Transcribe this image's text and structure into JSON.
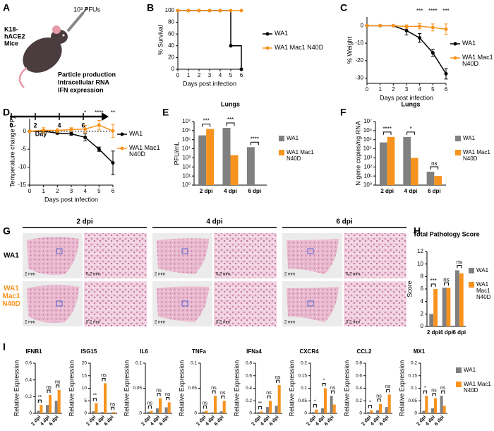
{
  "schematic": {
    "panel": "A",
    "mouse_label": [
      "K18-",
      "hACE2",
      "Mice"
    ],
    "inoculum": "10³ PFUs",
    "readouts": [
      "Particle production",
      "Intracellular RNA",
      "IFN expression"
    ],
    "days": [
      0,
      2,
      4,
      6
    ],
    "day_label": "Day"
  },
  "histology": {
    "panel": "G",
    "columns": [
      "2 dpi",
      "4 dpi",
      "6 dpi"
    ],
    "rows": [
      {
        "label": "WA1",
        "color": "#000000"
      },
      {
        "label": "WA1 Mac1 N40D",
        "color": "#f7931e"
      }
    ],
    "scale_bars": [
      "2 mm",
      "0.2 mm"
    ]
  },
  "chart_data": [
    {
      "panel": "B",
      "type": "line",
      "step": true,
      "x_label": "Days post infection",
      "y_label": "% Survival",
      "x": [
        0,
        1,
        2,
        3,
        4,
        5,
        6
      ],
      "xlim": [
        0,
        6
      ],
      "xticks": [
        0,
        1,
        2,
        3,
        4,
        5,
        6
      ],
      "ylim": [
        0,
        100
      ],
      "yticks": [
        0,
        20,
        40,
        60,
        80,
        100
      ],
      "legend": "right",
      "series": [
        {
          "name": "WA1",
          "color": "#000000",
          "values": [
            100,
            100,
            100,
            100,
            100,
            40,
            0
          ]
        },
        {
          "name": "WA1 Mac1 N40D",
          "color": "#f7931e",
          "values": [
            100,
            100,
            100,
            100,
            100,
            100,
            100
          ]
        }
      ]
    },
    {
      "panel": "C",
      "type": "line",
      "x_label": "Days post infection",
      "y_label": "% Weight",
      "x": [
        0,
        1,
        2,
        3,
        4,
        5,
        6
      ],
      "xlim": [
        0,
        6
      ],
      "xticks": [
        0,
        1,
        2,
        3,
        4,
        5,
        6
      ],
      "ylim": [
        -33,
        5
      ],
      "yticks": [
        -30,
        -20,
        -10,
        0
      ],
      "legend": "right",
      "annotations": [
        {
          "x": 4,
          "text": "***"
        },
        {
          "x": 5,
          "text": "****"
        },
        {
          "x": 6,
          "text": "***"
        }
      ],
      "series": [
        {
          "name": "WA1",
          "color": "#000000",
          "values": [
            0,
            0,
            0,
            -2.8,
            -7,
            -15.5,
            -27.5
          ],
          "errors": [
            0,
            0,
            0,
            2.5,
            2.5,
            2,
            3
          ]
        },
        {
          "name": "WA1 Mac1 N40D",
          "color": "#f7931e",
          "values": [
            0,
            0,
            0,
            -0.5,
            -0.3,
            -1,
            -2
          ],
          "errors": [
            0,
            0,
            0,
            1,
            1.5,
            2,
            3
          ]
        }
      ]
    },
    {
      "panel": "D",
      "type": "line",
      "x_label": "Days post infection",
      "y_label": "Temperature change (ºF)",
      "x": [
        0,
        1,
        2,
        3,
        4,
        5,
        6
      ],
      "xlim": [
        0,
        6
      ],
      "xticks": [
        0,
        1,
        2,
        3,
        4,
        5,
        6
      ],
      "ylim": [
        -15,
        3.5
      ],
      "yticks": [
        -15,
        -10,
        -5,
        0
      ],
      "hline": 0,
      "legend": "right",
      "annotations": [
        {
          "x": 4,
          "text": "*"
        },
        {
          "x": 5,
          "text": "****"
        },
        {
          "x": 6,
          "text": "**"
        }
      ],
      "series": [
        {
          "name": "WA1",
          "color": "#000000",
          "values": [
            0,
            0,
            -0.5,
            -0.7,
            -1.7,
            -5,
            -8.8
          ],
          "errors": [
            0,
            0,
            0.3,
            0.4,
            1,
            0.6,
            3.3
          ]
        },
        {
          "name": "WA1 Mac1 N40D",
          "color": "#f7931e",
          "values": [
            0,
            0.3,
            0.2,
            0.5,
            0.6,
            1.7,
            0.1
          ],
          "errors": [
            0,
            0.7,
            0.5,
            0.5,
            1,
            1.3,
            1.8
          ]
        }
      ]
    },
    {
      "panel": "E",
      "type": "bar",
      "title": "Lungs",
      "y_label": "PFU/mL",
      "log_scale": true,
      "legend": "right",
      "categories": [
        "2 dpi",
        "4 dpi",
        "6 dpi"
      ],
      "ylim": [
        1,
        10000000
      ],
      "yticks": [
        {
          "value": 1,
          "label": "10⁰"
        },
        {
          "value": 10,
          "label": "10¹"
        },
        {
          "value": 100,
          "label": "10²"
        },
        {
          "value": 1000,
          "label": "10³"
        },
        {
          "value": 10000,
          "label": "10⁴"
        },
        {
          "value": 100000,
          "label": "10⁵"
        },
        {
          "value": 1000000,
          "label": "10⁶"
        },
        {
          "value": 10000000,
          "label": "10⁷"
        }
      ],
      "significance": [
        "***",
        "***",
        "****"
      ],
      "series": [
        {
          "name": "WA1",
          "color": "#808080",
          "values": [
            300000,
            2000000,
            15000
          ]
        },
        {
          "name": "WA1 Mac1 N40D",
          "color": "#f7931e",
          "values": [
            1500000,
            2000,
            null
          ]
        }
      ]
    },
    {
      "panel": "F",
      "type": "bar",
      "title": "Lungs",
      "y_label": "N gene copies/ng RNA",
      "log_scale": true,
      "legend": "right",
      "categories": [
        "2 dpi",
        "4 dpi",
        "6 dpi"
      ],
      "ylim": [
        1,
        10000000
      ],
      "yticks": [
        {
          "value": 1,
          "label": "10⁰"
        },
        {
          "value": 10,
          "label": "10¹"
        },
        {
          "value": 100,
          "label": "10²"
        },
        {
          "value": 1000,
          "label": "10³"
        },
        {
          "value": 10000,
          "label": "10⁴"
        },
        {
          "value": 100000,
          "label": "10⁵"
        },
        {
          "value": 1000000,
          "label": "10⁶"
        },
        {
          "value": 10000000,
          "label": "10⁷"
        }
      ],
      "significance": [
        "****",
        "*",
        "ns"
      ],
      "series": [
        {
          "name": "WA1",
          "color": "#808080",
          "values": [
            50000,
            200000,
            30
          ]
        },
        {
          "name": "WA1 Mac1 N40D",
          "color": "#f7931e",
          "values": [
            200000,
            1000,
            10
          ]
        }
      ]
    },
    {
      "panel": "H",
      "type": "bar",
      "title": "Total Pathology Score",
      "y_label": "Score",
      "legend": "right",
      "categories": [
        "2 dpi",
        "4 dpi",
        "6 dpi"
      ],
      "ylim": [
        0,
        12
      ],
      "yticks": [
        0,
        2,
        4,
        6,
        8,
        10,
        12
      ],
      "significance": [
        "***",
        "ns",
        "ns"
      ],
      "series": [
        {
          "name": "WA1",
          "color": "#808080",
          "values": [
            2,
            6.2,
            9
          ]
        },
        {
          "name": "WA1 Mac1 N40D",
          "color": "#f7931e",
          "values": [
            6,
            6.2,
            8.5
          ]
        }
      ]
    },
    {
      "panel": "I",
      "type": "bar",
      "y_label": "Relative Expression",
      "legend": "right",
      "categories": [
        "2 dpi",
        "4 dpi",
        "6 dpi"
      ],
      "series": [
        {
          "name": "WA1",
          "color": "#808080"
        },
        {
          "name": "WA1 Mac1 N40D",
          "color": "#f7931e"
        }
      ],
      "subplots": [
        {
          "title": "IFNB1",
          "ylim": [
            0,
            0.6
          ],
          "yticks": [
            0,
            0.2,
            0.4,
            0.6
          ],
          "values": [
            [
              0.03,
              0.1,
              0.15
            ],
            [
              0.1,
              0.22,
              0.28
            ]
          ],
          "significance": [
            "**",
            "ns",
            "ns"
          ]
        },
        {
          "title": "ISG15",
          "ylim": [
            0,
            20
          ],
          "yticks": [
            0,
            5,
            10,
            15,
            20
          ],
          "values": [
            [
              0.8,
              0.5,
              0.3
            ],
            [
              4,
              12,
              0.5
            ]
          ],
          "significance": [
            "**",
            "ns",
            "ns"
          ]
        },
        {
          "title": "IL6",
          "ylim": [
            0,
            0.1
          ],
          "yticks": [
            0,
            0.05,
            0.1
          ],
          "values": [
            [
              0.003,
              0.01,
              0.012
            ],
            [
              0.005,
              0.03,
              0.022
            ]
          ],
          "significance": [
            "ns",
            "ns",
            "ns"
          ]
        },
        {
          "title": "TNFa",
          "ylim": [
            0,
            0.1
          ],
          "yticks": [
            0,
            0.05,
            0.1
          ],
          "values": [
            [
              0.003,
              0.002,
              0.004
            ],
            [
              0.005,
              0.035,
              0.025
            ]
          ],
          "significance": [
            "ns",
            "ns",
            "ns"
          ]
        },
        {
          "title": "IFNa4",
          "ylim": [
            0,
            0.8
          ],
          "yticks": [
            0,
            0.2,
            0.4,
            0.6,
            0.8
          ],
          "values": [
            [
              0.02,
              0.1,
              0.12
            ],
            [
              0.03,
              0.2,
              0.45
            ]
          ],
          "significance": [
            "**",
            "ns",
            "ns"
          ]
        },
        {
          "title": "CXCR4",
          "ylim": [
            0,
            0.2
          ],
          "yticks": [
            0,
            0.05,
            0.1,
            0.15,
            0.2
          ],
          "values": [
            [
              0.005,
              0.02,
              0.07
            ],
            [
              0.015,
              0.1,
              0.035
            ]
          ],
          "significance": [
            "*",
            "*",
            "ns"
          ]
        },
        {
          "title": "CCL2",
          "ylim": [
            0,
            0.8
          ],
          "yticks": [
            0,
            0.2,
            0.4,
            0.6,
            0.8
          ],
          "values": [
            [
              0.02,
              0.05,
              0.1
            ],
            [
              0.05,
              0.15,
              0.3
            ]
          ],
          "significance": [
            "*",
            "ns",
            "ns"
          ]
        },
        {
          "title": "MX1",
          "ylim": [
            0,
            0.2
          ],
          "yticks": [
            0,
            0.05,
            0.1,
            0.15,
            0.2
          ],
          "values": [
            [
              0.01,
              0.02,
              0.07
            ],
            [
              0.07,
              0.06,
              0.03
            ]
          ],
          "significance": [
            "*",
            "ns",
            "ns"
          ]
        }
      ]
    }
  ]
}
